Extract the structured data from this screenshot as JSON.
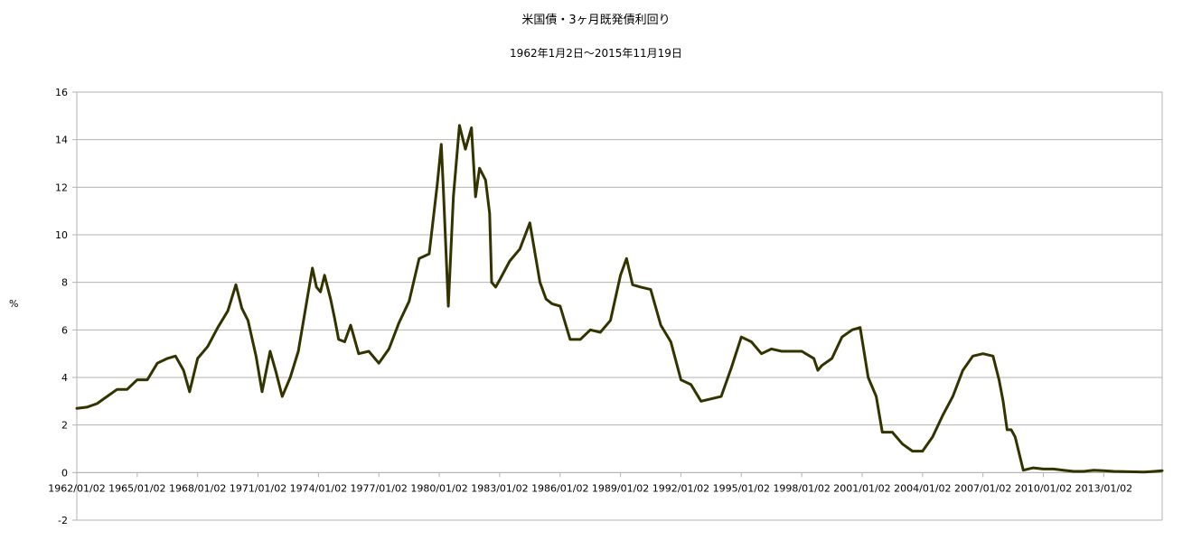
{
  "chart_data": {
    "type": "line",
    "title": "米国債・3ヶ月既発債利回り",
    "subtitle": "1962年1月2日～2015年11月19日",
    "xlabel": "",
    "ylabel": "%",
    "ylim": [
      -2,
      16
    ],
    "yticks": [
      -2,
      0,
      2,
      4,
      6,
      8,
      10,
      12,
      14,
      16
    ],
    "xlim": [
      1962.0,
      2015.9
    ],
    "xticks": [
      {
        "x": 1962.0,
        "label": "1962/01/02"
      },
      {
        "x": 1965.0,
        "label": "1965/01/02"
      },
      {
        "x": 1968.0,
        "label": "1968/01/02"
      },
      {
        "x": 1971.0,
        "label": "1971/01/02"
      },
      {
        "x": 1974.0,
        "label": "1974/01/02"
      },
      {
        "x": 1977.0,
        "label": "1977/01/02"
      },
      {
        "x": 1980.0,
        "label": "1980/01/02"
      },
      {
        "x": 1983.0,
        "label": "1983/01/02"
      },
      {
        "x": 1986.0,
        "label": "1986/01/02"
      },
      {
        "x": 1989.0,
        "label": "1989/01/02"
      },
      {
        "x": 1992.0,
        "label": "1992/01/02"
      },
      {
        "x": 1995.0,
        "label": "1995/01/02"
      },
      {
        "x": 1998.0,
        "label": "1998/01/02"
      },
      {
        "x": 2001.0,
        "label": "2001/01/02"
      },
      {
        "x": 2004.0,
        "label": "2004/01/02"
      },
      {
        "x": 2007.0,
        "label": "2007/01/02"
      },
      {
        "x": 2010.0,
        "label": "2010/01/02"
      },
      {
        "x": 2013.0,
        "label": "2013/01/02"
      }
    ],
    "grid": true,
    "legend": "none",
    "series": [
      {
        "color": "#333300",
        "x": [
          1962.0,
          1962.5,
          1963.0,
          1963.5,
          1964.0,
          1964.5,
          1965.0,
          1965.5,
          1966.0,
          1966.5,
          1966.9,
          1967.3,
          1967.6,
          1968.0,
          1968.5,
          1969.0,
          1969.5,
          1969.9,
          1970.2,
          1970.5,
          1970.9,
          1971.2,
          1971.6,
          1971.9,
          1972.2,
          1972.6,
          1973.0,
          1973.4,
          1973.7,
          1973.9,
          1974.1,
          1974.3,
          1974.6,
          1974.8,
          1975.0,
          1975.3,
          1975.6,
          1976.0,
          1976.5,
          1977.0,
          1977.5,
          1978.0,
          1978.5,
          1979.0,
          1979.5,
          1979.9,
          1980.1,
          1980.2,
          1980.45,
          1980.7,
          1981.0,
          1981.3,
          1981.6,
          1981.8,
          1982.0,
          1982.3,
          1982.5,
          1982.6,
          1982.8,
          1983.0,
          1983.5,
          1984.0,
          1984.5,
          1985.0,
          1985.3,
          1985.6,
          1986.0,
          1986.5,
          1987.0,
          1987.5,
          1988.0,
          1988.5,
          1989.0,
          1989.3,
          1989.6,
          1990.0,
          1990.5,
          1991.0,
          1991.5,
          1992.0,
          1992.5,
          1993.0,
          1993.5,
          1994.0,
          1994.5,
          1995.0,
          1995.5,
          1996.0,
          1996.5,
          1997.0,
          1997.5,
          1998.0,
          1998.6,
          1998.8,
          1999.0,
          1999.5,
          2000.0,
          2000.5,
          2000.9,
          2001.3,
          2001.7,
          2002.0,
          2002.5,
          2003.0,
          2003.5,
          2004.0,
          2004.5,
          2005.0,
          2005.5,
          2006.0,
          2006.5,
          2007.0,
          2007.5,
          2007.8,
          2008.0,
          2008.2,
          2008.4,
          2008.6,
          2008.8,
          2009.0,
          2009.5,
          2010.0,
          2010.5,
          2011.0,
          2011.5,
          2012.0,
          2012.5,
          2013.0,
          2013.5,
          2014.0,
          2014.5,
          2015.0,
          2015.5,
          2015.9
        ],
        "values": [
          2.7,
          2.75,
          2.9,
          3.2,
          3.5,
          3.5,
          3.9,
          3.9,
          4.6,
          4.8,
          4.9,
          4.3,
          3.4,
          4.8,
          5.3,
          6.1,
          6.8,
          7.9,
          6.9,
          6.4,
          4.9,
          3.4,
          5.1,
          4.2,
          3.2,
          4.0,
          5.1,
          7.1,
          8.6,
          7.8,
          7.6,
          8.3,
          7.3,
          6.5,
          5.6,
          5.5,
          6.2,
          5.0,
          5.1,
          4.6,
          5.2,
          6.3,
          7.2,
          9.0,
          9.2,
          12.1,
          13.8,
          12.0,
          7.0,
          11.6,
          14.6,
          13.6,
          14.5,
          11.6,
          12.8,
          12.3,
          10.9,
          8.0,
          7.8,
          8.1,
          8.9,
          9.4,
          10.5,
          8.0,
          7.3,
          7.1,
          7.0,
          5.6,
          5.6,
          6.0,
          5.9,
          6.4,
          8.3,
          9.0,
          7.9,
          7.8,
          7.7,
          6.2,
          5.5,
          3.9,
          3.7,
          3.0,
          3.1,
          3.2,
          4.4,
          5.7,
          5.5,
          5.0,
          5.2,
          5.1,
          5.1,
          5.1,
          4.8,
          4.3,
          4.5,
          4.8,
          5.7,
          6.0,
          6.1,
          4.0,
          3.2,
          1.7,
          1.7,
          1.2,
          0.9,
          0.9,
          1.5,
          2.4,
          3.2,
          4.3,
          4.9,
          5.0,
          4.9,
          3.9,
          3.0,
          1.8,
          1.8,
          1.5,
          0.8,
          0.1,
          0.2,
          0.15,
          0.15,
          0.1,
          0.05,
          0.05,
          0.1,
          0.08,
          0.05,
          0.04,
          0.03,
          0.02,
          0.05,
          0.08
        ]
      }
    ]
  }
}
